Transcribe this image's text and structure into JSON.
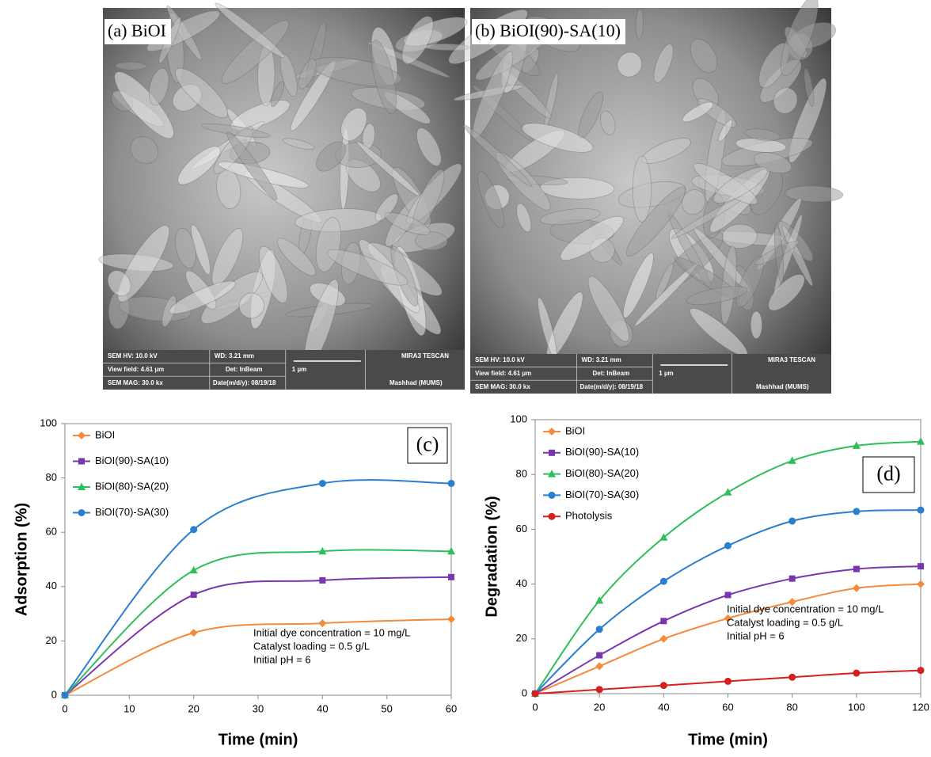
{
  "sem_panels": [
    {
      "label": "(a) BiOI",
      "info": [
        "SEM HV: 10.0 kV",
        "WD: 3.21 mm",
        "MIRA3 TESCAN",
        "View field: 4.61 µm",
        "Det: InBeam",
        "1 µm",
        "SEM MAG: 30.0 kx",
        "Date(m/d/y): 08/19/18",
        "Mashhad (MUMS)"
      ]
    },
    {
      "label": "(b) BiOI(90)-SA(10)",
      "info": [
        "SEM HV: 10.0 kV",
        "WD: 3.21 mm",
        "MIRA3 TESCAN",
        "View field: 4.61 µm",
        "Det: InBeam",
        "1 µm",
        "SEM MAG: 30.0 kx",
        "Date(m/d/y): 08/19/18",
        "Mashhad (MUMS)"
      ]
    }
  ],
  "chart_data": [
    {
      "type": "line",
      "panel_label": "(c)",
      "x_label": "Time (min)",
      "y_label": "Adsorption (%)",
      "x": [
        0,
        20,
        40,
        60
      ],
      "xlim": [
        0,
        60
      ],
      "xticks": [
        0,
        10,
        20,
        30,
        40,
        50,
        60
      ],
      "ylim": [
        0,
        100
      ],
      "yticks": [
        0,
        20,
        40,
        60,
        80,
        100
      ],
      "smooth": true,
      "annotations": [
        "Initial dye concentration = 10 mg/L",
        "Catalyst loading = 0.5 g/L",
        "Initial pH = 6"
      ],
      "series": [
        {
          "name": "BiOI",
          "color": "#f58a3a",
          "marker": "diamond",
          "values": [
            0,
            23,
            26.5,
            28
          ]
        },
        {
          "name": "BiOI(90)-SA(10)",
          "color": "#7a35b0",
          "marker": "square",
          "values": [
            0,
            37,
            42.3,
            43.5
          ]
        },
        {
          "name": "BiOI(80)-SA(20)",
          "color": "#2fbf5a",
          "marker": "triangle",
          "values": [
            0,
            46,
            53,
            53
          ]
        },
        {
          "name": "BiOI(70)-SA(30)",
          "color": "#2a7fd0",
          "marker": "circle",
          "values": [
            0,
            61,
            78,
            78
          ]
        }
      ]
    },
    {
      "type": "line",
      "panel_label": "(d)",
      "x_label": "Time (min)",
      "y_label": "Degradation (%)",
      "x": [
        0,
        20,
        40,
        60,
        80,
        100,
        120
      ],
      "xlim": [
        0,
        120
      ],
      "xticks": [
        0,
        20,
        40,
        60,
        80,
        100,
        120
      ],
      "ylim": [
        0,
        100
      ],
      "yticks": [
        0,
        20,
        40,
        60,
        80,
        100
      ],
      "smooth": true,
      "annotations": [
        "Initial dye concentration = 10 mg/L",
        "Catalyst loading = 0.5 g/L",
        "Initial pH = 6"
      ],
      "series": [
        {
          "name": "BiOI",
          "color": "#f58a3a",
          "marker": "diamond",
          "values": [
            0,
            10,
            20,
            27.5,
            33.5,
            38.5,
            40
          ]
        },
        {
          "name": "BiOI(90)-SA(10)",
          "color": "#7a35b0",
          "marker": "square",
          "values": [
            0,
            14,
            26.5,
            36,
            42,
            45.5,
            46.5
          ]
        },
        {
          "name": "BiOI(80)-SA(20)",
          "color": "#2fbf5a",
          "marker": "triangle",
          "values": [
            0,
            34,
            57,
            73.5,
            85,
            90.5,
            92
          ]
        },
        {
          "name": "BiOI(70)-SA(30)",
          "color": "#2a7fd0",
          "marker": "circle",
          "values": [
            0,
            23.5,
            41,
            54,
            63,
            66.5,
            67
          ]
        },
        {
          "name": "Photolysis",
          "color": "#d42020",
          "marker": "circle",
          "values": [
            0,
            1.5,
            3,
            4.5,
            6,
            7.5,
            8.5
          ]
        }
      ]
    }
  ]
}
